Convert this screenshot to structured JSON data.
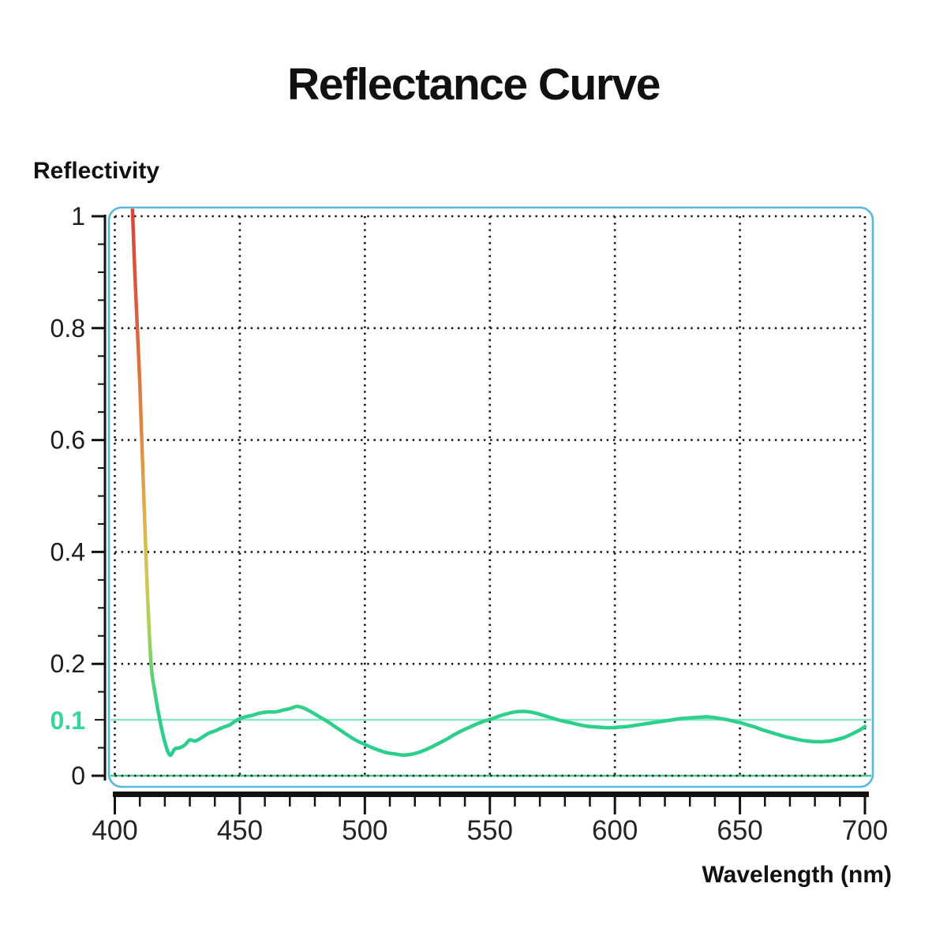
{
  "title": "Reflectance Curve",
  "colors": {
    "background": "#ffffff",
    "border": "#56b8dc",
    "grid": "#161616",
    "axis": "#111111",
    "text": "#1c1c1c",
    "curve_green": "#2bce8c",
    "highlight_label_green": "#35d69a",
    "reference_line_green": "#8ce9c7",
    "zero_line_green": "#3fcb92"
  },
  "chart_data": {
    "type": "line",
    "title": "Reflectance Curve",
    "xlabel": "Wavelength (nm)",
    "ylabel": "Reflectivity",
    "xlim": [
      400,
      700
    ],
    "ylim": [
      0,
      1
    ],
    "grid": "dotted",
    "x_ticks": [
      400,
      450,
      500,
      550,
      600,
      650,
      700
    ],
    "x_tick_labels": [
      "400",
      "450",
      "500",
      "550",
      "600",
      "650",
      "700"
    ],
    "x_minor_step": 10,
    "y_ticks": [
      0,
      0.2,
      0.4,
      0.6,
      0.8,
      1
    ],
    "y_tick_labels": [
      "0",
      "0.2",
      "0.4",
      "0.6",
      "0.8",
      "1"
    ],
    "y_minor_step": 0.05,
    "highlight_tick": {
      "value": 0.1,
      "label": "0.1",
      "label_color": "#35d69a"
    },
    "reference_lines": [
      {
        "name": "zero-baseline",
        "y": 0,
        "color": "#3fcb92"
      },
      {
        "name": "target-line-0-1",
        "y": 0.1,
        "color": "#8ce9c7"
      }
    ],
    "series": [
      {
        "name": "reflectance",
        "gradient": [
          {
            "offset": 0.0,
            "color": "#d8443c"
          },
          {
            "offset": 0.21,
            "color": "#d9613d"
          },
          {
            "offset": 0.42,
            "color": "#dd8943"
          },
          {
            "offset": 0.58,
            "color": "#dfb04b"
          },
          {
            "offset": 0.7,
            "color": "#d2c853"
          },
          {
            "offset": 0.8,
            "color": "#a6d156"
          },
          {
            "offset": 0.88,
            "color": "#5fd174"
          },
          {
            "offset": 0.95,
            "color": "#2fd08a"
          },
          {
            "offset": 1.0,
            "color": "#2bce8c"
          }
        ],
        "x": [
          407,
          408,
          409,
          410,
          411,
          412,
          413,
          414.5,
          416,
          418,
          420,
          422,
          424,
          426,
          428,
          430,
          432,
          434,
          436,
          438,
          440,
          443,
          446,
          449,
          452,
          455,
          458,
          461,
          464,
          467,
          470,
          473,
          476,
          479,
          482,
          485,
          488,
          491,
          494,
          497,
          500,
          503,
          506,
          509,
          512,
          515,
          518,
          521,
          524,
          527,
          530,
          533,
          536,
          539,
          542,
          545,
          548,
          551,
          554,
          557,
          560,
          563,
          566,
          569,
          572,
          575,
          578,
          581,
          584,
          587,
          590,
          593,
          596,
          599,
          602,
          605,
          608,
          611,
          614,
          617,
          620,
          623,
          626,
          629,
          632,
          635,
          638,
          641,
          644,
          647,
          650,
          653,
          656,
          659,
          662,
          665,
          668,
          671,
          674,
          677,
          680,
          683,
          686,
          689,
          692,
          695,
          698,
          700
        ],
        "y": [
          1.02,
          0.9,
          0.8,
          0.7,
          0.57,
          0.45,
          0.33,
          0.2,
          0.15,
          0.1,
          0.06,
          0.037,
          0.048,
          0.05,
          0.055,
          0.064,
          0.062,
          0.066,
          0.072,
          0.077,
          0.08,
          0.086,
          0.091,
          0.1,
          0.105,
          0.108,
          0.112,
          0.114,
          0.114,
          0.117,
          0.12,
          0.124,
          0.12,
          0.113,
          0.105,
          0.097,
          0.088,
          0.079,
          0.07,
          0.062,
          0.056,
          0.05,
          0.045,
          0.041,
          0.039,
          0.037,
          0.038,
          0.041,
          0.046,
          0.052,
          0.059,
          0.066,
          0.074,
          0.081,
          0.087,
          0.093,
          0.098,
          0.102,
          0.107,
          0.111,
          0.114,
          0.115,
          0.114,
          0.111,
          0.107,
          0.103,
          0.099,
          0.096,
          0.093,
          0.09,
          0.088,
          0.087,
          0.086,
          0.086,
          0.087,
          0.088,
          0.09,
          0.092,
          0.094,
          0.096,
          0.098,
          0.1,
          0.102,
          0.103,
          0.104,
          0.105,
          0.105,
          0.103,
          0.101,
          0.098,
          0.095,
          0.091,
          0.087,
          0.082,
          0.078,
          0.074,
          0.07,
          0.067,
          0.064,
          0.062,
          0.061,
          0.061,
          0.062,
          0.065,
          0.069,
          0.075,
          0.082,
          0.088
        ]
      }
    ],
    "legend": null
  }
}
